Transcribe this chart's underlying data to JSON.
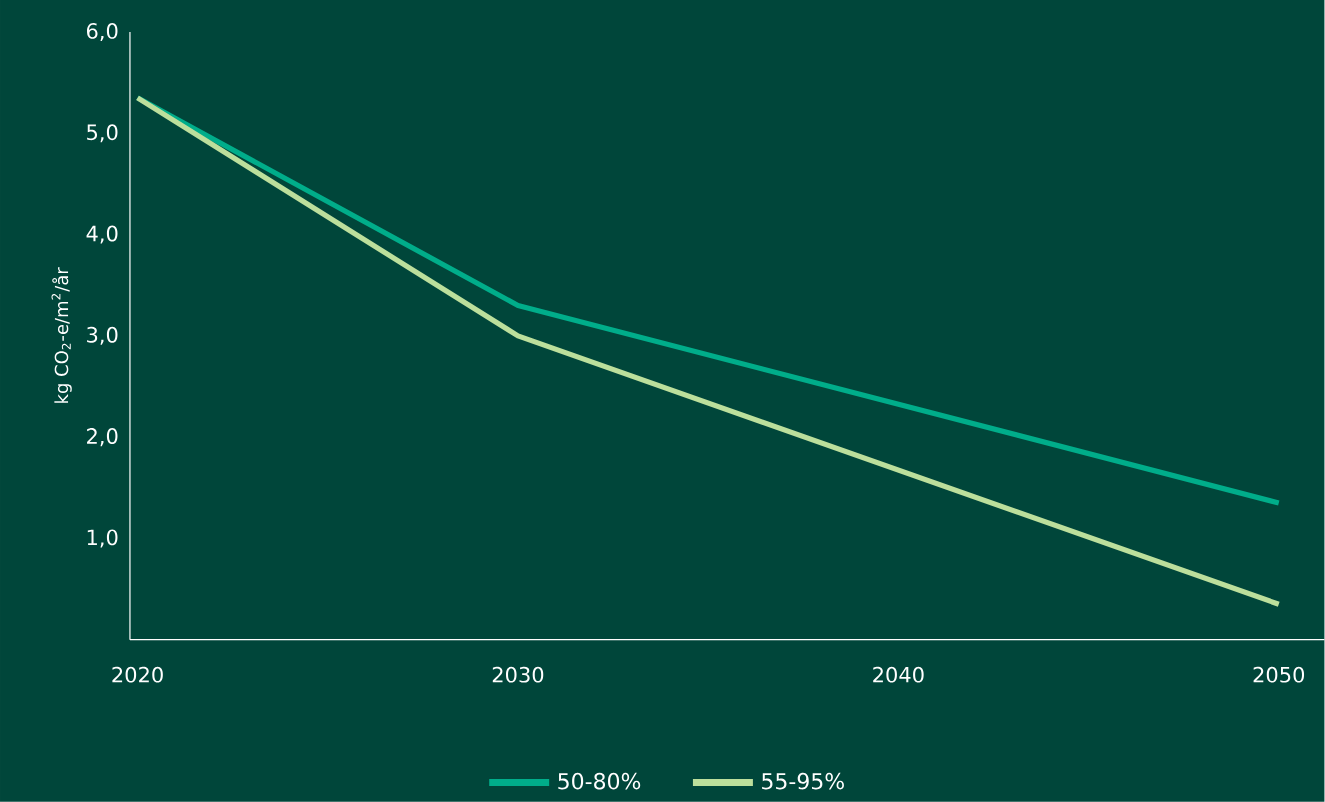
{
  "chart_data": {
    "type": "line",
    "ylabel": "kg CO$_{2}$-e/m$^{2}$/år",
    "x": [
      2020,
      2030,
      2050
    ],
    "series": [
      {
        "name": "50-80%",
        "color": "#00ad8a",
        "values": [
          5.35,
          3.3,
          1.35
        ]
      },
      {
        "name": "55-95%",
        "color": "#bcdf9c",
        "values": [
          5.35,
          3.0,
          0.35
        ]
      }
    ],
    "xlim": [
      2019.8,
      2051.2
    ],
    "ylim": [
      0,
      6
    ],
    "xticks": [
      2020,
      2030,
      2040,
      2050
    ],
    "yticks": [
      {
        "value": 1,
        "label": "1,0"
      },
      {
        "value": 2,
        "label": "2,0"
      },
      {
        "value": 3,
        "label": "3,0"
      },
      {
        "value": 4,
        "label": "4,0"
      },
      {
        "value": 5,
        "label": "5,0"
      },
      {
        "value": 6,
        "label": "6,0"
      }
    ],
    "legend": "bottom"
  }
}
